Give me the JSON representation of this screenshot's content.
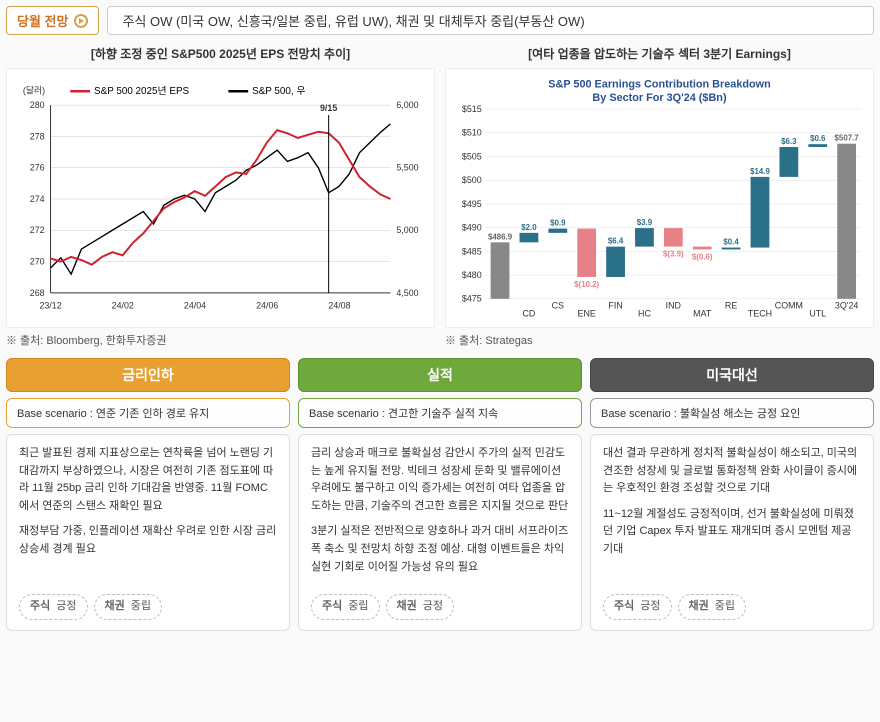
{
  "outlook": {
    "label": "당월 전망",
    "text": "주식 OW (미국 OW, 신흥국/일본 중립, 유럽 UW), 채권 및 대체투자 중립(부동산 OW)"
  },
  "chart_left": {
    "title": "[하향 조정 중인 S&P500 2025년 EPS 전망치 추이]",
    "y_left_label": "(달러)",
    "series_a_name": "S&P 500 2025년 EPS",
    "series_b_name": "S&P 500, 우",
    "annotation": "9/15",
    "colors": {
      "eps": "#d02030",
      "price": "#000000",
      "grid": "#cccccc"
    },
    "y_left": {
      "min": 268,
      "max": 280,
      "ticks": [
        268,
        270,
        272,
        274,
        276,
        278,
        280
      ]
    },
    "y_right": {
      "min": 4500,
      "max": 6000,
      "ticks": [
        4500,
        5000,
        5500,
        6000
      ]
    },
    "x_labels": [
      "23/12",
      "24/02",
      "24/04",
      "24/06",
      "24/08"
    ],
    "eps_data": [
      270.2,
      270.0,
      270.3,
      270.1,
      269.8,
      270.3,
      270.6,
      270.4,
      271.2,
      271.8,
      272.6,
      273.4,
      273.8,
      274.1,
      274.5,
      274.2,
      274.8,
      275.4,
      275.7,
      275.6,
      276.5,
      277.6,
      278.4,
      278.2,
      277.9,
      278.1,
      278.3,
      278.2,
      277.6,
      276.5,
      275.4,
      274.8,
      274.3,
      274.0
    ],
    "price_data": [
      4700,
      4780,
      4650,
      4850,
      4900,
      4950,
      5000,
      5050,
      5100,
      5150,
      5050,
      5200,
      5250,
      5280,
      5250,
      5150,
      5300,
      5350,
      5400,
      5480,
      5520,
      5580,
      5640,
      5550,
      5580,
      5620,
      5500,
      5300,
      5350,
      5450,
      5620,
      5700,
      5780,
      5850
    ],
    "annotation_index": 27,
    "source": "※ 출처: Bloomberg, 한화투자증권"
  },
  "chart_right": {
    "title": "[여타 업종을 압도하는 기술주 섹터 3분기 Earnings]",
    "subtitle_l1": "S&P 500 Earnings Contribution Breakdown",
    "subtitle_l2": "By Sector For 3Q'24 ($Bn)",
    "colors": {
      "pos": "#2a7088",
      "neg": "#e88088",
      "base": "#888888",
      "grid": "#e0e0e0"
    },
    "y": {
      "min": 475,
      "max": 515,
      "ticks": [
        475,
        480,
        485,
        490,
        495,
        500,
        505,
        510,
        515
      ]
    },
    "categories": [
      "",
      "CD",
      "CS",
      "ENE",
      "FIN",
      "HC",
      "IND",
      "MAT",
      "RE",
      "TECH",
      "COMM",
      "UTL",
      "3Q'24"
    ],
    "bars": [
      {
        "label": "$486.9",
        "from": 475,
        "to": 486.9,
        "type": "base"
      },
      {
        "label": "$2.0",
        "from": 486.9,
        "to": 488.9,
        "type": "pos"
      },
      {
        "label": "$0.9",
        "from": 488.9,
        "to": 489.8,
        "type": "pos"
      },
      {
        "label": "$(10.2)",
        "from": 479.6,
        "to": 489.8,
        "type": "neg"
      },
      {
        "label": "$6.4",
        "from": 479.6,
        "to": 486.0,
        "type": "pos"
      },
      {
        "label": "$3.9",
        "from": 486.0,
        "to": 489.9,
        "type": "pos"
      },
      {
        "label": "$(3.9)",
        "from": 486.0,
        "to": 489.9,
        "type": "neg"
      },
      {
        "label": "$(0.6)",
        "from": 485.4,
        "to": 486.0,
        "type": "neg"
      },
      {
        "label": "$0.4",
        "from": 485.4,
        "to": 485.8,
        "type": "pos"
      },
      {
        "label": "$14.9",
        "from": 485.8,
        "to": 500.7,
        "type": "pos"
      },
      {
        "label": "$6.3",
        "from": 500.7,
        "to": 507.0,
        "type": "pos"
      },
      {
        "label": "$0.6",
        "from": 507.0,
        "to": 507.6,
        "type": "pos"
      },
      {
        "label": "$507.7",
        "from": 475,
        "to": 507.7,
        "type": "base"
      }
    ],
    "source": "※ 출처: Strategas"
  },
  "cards": [
    {
      "color": "orange",
      "header": "금리인하",
      "scenario": "Base scenario : 연준 기존 인하 경로 유지",
      "body": [
        "최근 발표된 경제 지표상으로는 연착륙을 넘어 노랜딩 기대감까지 부상하였으나, 시장은 여전히 기존 점도표에 따라 11월 25bp 금리 인하 기대감을 반영중. 11월 FOMC에서 연준의 스탠스 재확인 필요",
        "재정부담 가중, 인플레이션 재확산 우려로 인한 시장 금리 상승세 경계 필요"
      ],
      "pills": [
        {
          "label": "주식",
          "value": "긍정"
        },
        {
          "label": "채권",
          "value": "중립"
        }
      ]
    },
    {
      "color": "green",
      "header": "실적",
      "scenario": "Base scenario : 견고한 기술주 실적 지속",
      "body": [
        "금리 상승과 매크로 불확실성 감안시 주가의 실적 민감도는 높게 유지될 전망. 빅테크 성장세 둔화 및 밸류에이션 우려에도 불구하고 이익 증가세는 여전히 여타 업종을 압도하는 만큼, 기술주의 견고한 흐름은 지지될 것으로 판단",
        "3분기 실적은 전반적으로 양호하나 과거 대비 서프라이즈 폭 축소 및 전망치 하향 조정 예상. 대형 이벤트들은 차익 실현 기회로 이어질 가능성 유의 필요"
      ],
      "pills": [
        {
          "label": "주식",
          "value": "중립"
        },
        {
          "label": "채권",
          "value": "긍정"
        }
      ]
    },
    {
      "color": "gray",
      "header": "미국대선",
      "scenario": "Base scenario : 불확실성 해소는 긍정 요인",
      "body": [
        "대선 결과 무관하게 정치적 불확실성이 해소되고, 미국의 견조한 성장세 및 글로벌 통화정책 완화 사이클이 증시에는 우호적인 환경 조성할 것으로 기대",
        "11~12월 계절성도 긍정적이며, 선거 불확실성에 미뤄졌던 기업 Capex 투자 발표도 재개되며 증시 모멘텀 제공 기대"
      ],
      "pills": [
        {
          "label": "주식",
          "value": "긍정"
        },
        {
          "label": "채권",
          "value": "중립"
        }
      ]
    }
  ]
}
